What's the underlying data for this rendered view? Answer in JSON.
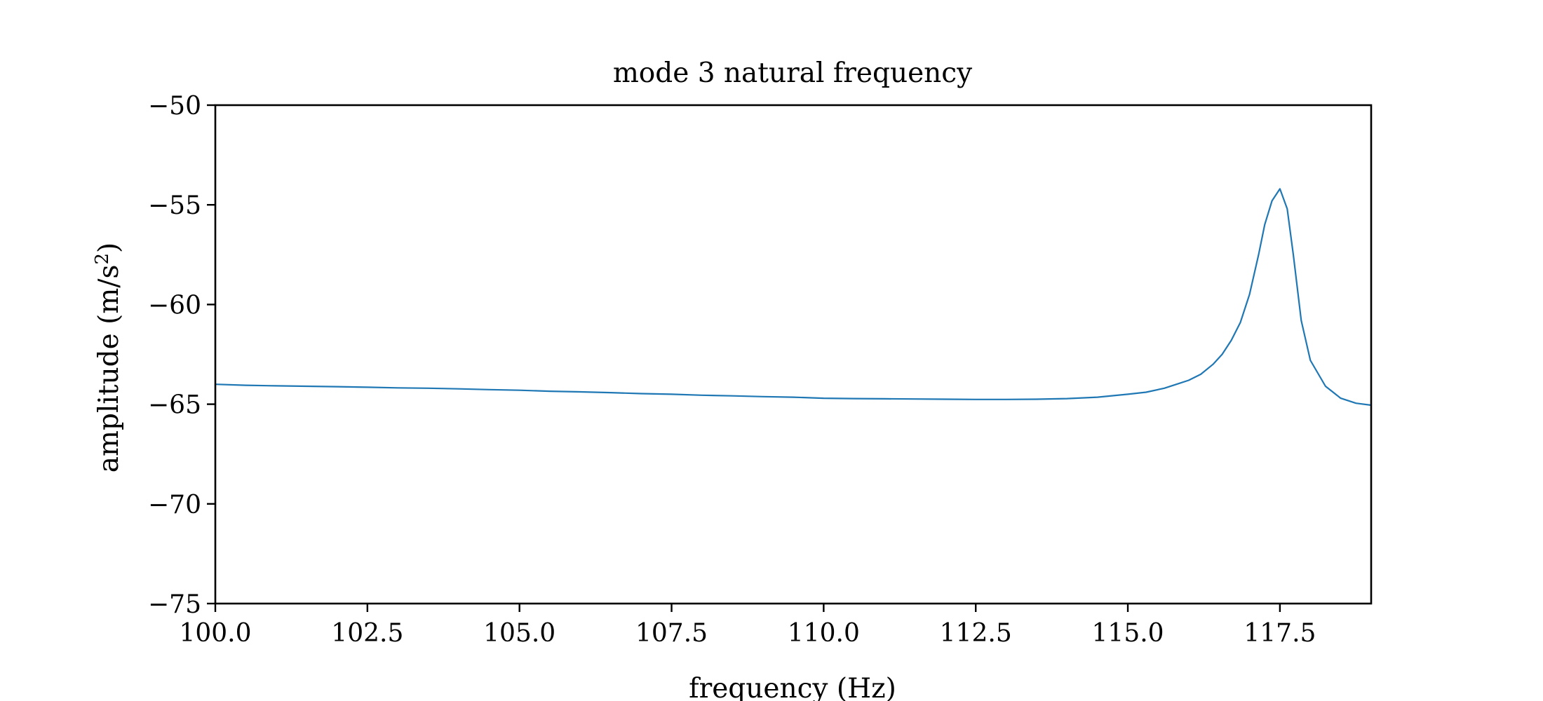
{
  "chart_data": {
    "type": "line",
    "title": "mode 3 natural frequency",
    "xlabel": "frequency (Hz)",
    "ylabel_main": "amplitude (m/s",
    "ylabel_sup": "2",
    "ylabel_tail": ")",
    "xlim": [
      100.0,
      119.0
    ],
    "ylim": [
      -75,
      -50
    ],
    "xticks": [
      100.0,
      102.5,
      105.0,
      107.5,
      110.0,
      112.5,
      115.0,
      117.5
    ],
    "xtick_labels": [
      "100.0",
      "102.5",
      "105.0",
      "107.5",
      "110.0",
      "112.5",
      "115.0",
      "117.5"
    ],
    "yticks": [
      -75,
      -70,
      -65,
      -60,
      -55,
      -50
    ],
    "ytick_labels": [
      "−75",
      "−70",
      "−65",
      "−60",
      "−55",
      "−50"
    ],
    "grid": false,
    "line_color": "#1f77b4",
    "series": [
      {
        "x": [
          100.0,
          100.5,
          101.0,
          101.5,
          102.0,
          102.5,
          103.0,
          103.5,
          104.0,
          104.5,
          105.0,
          105.5,
          106.0,
          106.5,
          107.0,
          107.5,
          108.0,
          108.5,
          109.0,
          109.5,
          110.0,
          110.5,
          111.0,
          111.5,
          112.0,
          112.5,
          113.0,
          113.5,
          114.0,
          114.5,
          115.0,
          115.3,
          115.6,
          115.8,
          116.0,
          116.2,
          116.4,
          116.55,
          116.7,
          116.85,
          117.0,
          117.15,
          117.25,
          117.37,
          117.5,
          117.62,
          117.72,
          117.85,
          118.0,
          118.25,
          118.5,
          118.75,
          119.0
        ],
        "y": [
          -64.0,
          -64.05,
          -64.08,
          -64.1,
          -64.12,
          -64.15,
          -64.18,
          -64.2,
          -64.23,
          -64.27,
          -64.3,
          -64.35,
          -64.38,
          -64.42,
          -64.47,
          -64.5,
          -64.55,
          -64.58,
          -64.62,
          -64.65,
          -64.7,
          -64.72,
          -64.73,
          -64.74,
          -64.75,
          -64.76,
          -64.76,
          -64.75,
          -64.72,
          -64.65,
          -64.5,
          -64.4,
          -64.2,
          -64.0,
          -63.8,
          -63.5,
          -63.0,
          -62.5,
          -61.8,
          -60.9,
          -59.5,
          -57.5,
          -56.0,
          -54.8,
          -54.2,
          -55.2,
          -57.5,
          -60.8,
          -62.8,
          -64.1,
          -64.7,
          -64.95,
          -65.05
        ]
      }
    ]
  }
}
